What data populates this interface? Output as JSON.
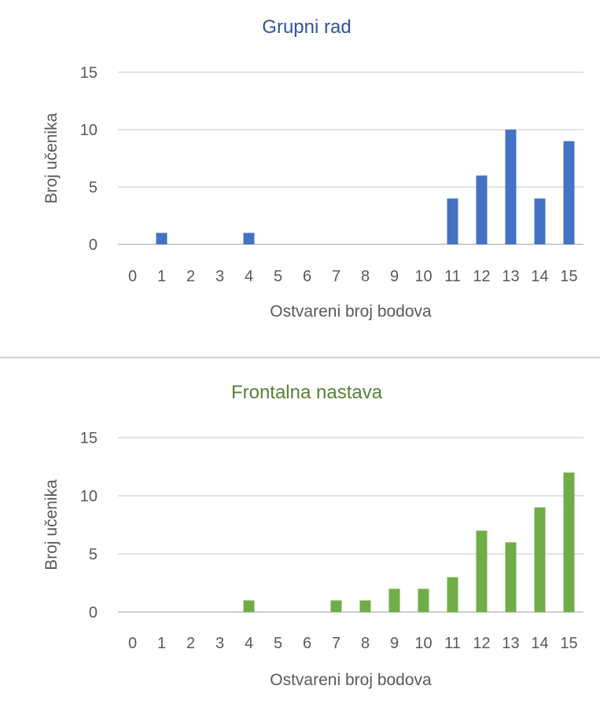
{
  "chart_data": [
    {
      "type": "bar",
      "title": "Grupni rad",
      "xlabel": "Ostvareni broj bodova",
      "ylabel": "Broj učenika",
      "categories": [
        "0",
        "1",
        "2",
        "3",
        "4",
        "5",
        "6",
        "7",
        "8",
        "9",
        "10",
        "11",
        "12",
        "13",
        "14",
        "15"
      ],
      "values": [
        0,
        1,
        0,
        0,
        1,
        0,
        0,
        0,
        0,
        0,
        0,
        4,
        6,
        10,
        4,
        9
      ],
      "y_ticks": [
        "0",
        "5",
        "10",
        "15"
      ],
      "ylim": [
        0,
        15
      ],
      "grid": true,
      "legend": "none",
      "color": "#4472c4",
      "title_color": "#2f5597"
    },
    {
      "type": "bar",
      "title": "Frontalna nastava",
      "xlabel": "Ostvareni broj bodova",
      "ylabel": "Broj učenika",
      "categories": [
        "0",
        "1",
        "2",
        "3",
        "4",
        "5",
        "6",
        "7",
        "8",
        "9",
        "10",
        "11",
        "12",
        "13",
        "14",
        "15"
      ],
      "values": [
        0,
        0,
        0,
        0,
        1,
        0,
        0,
        1,
        1,
        2,
        2,
        3,
        7,
        6,
        9,
        12
      ],
      "y_ticks": [
        "0",
        "5",
        "10",
        "15"
      ],
      "ylim": [
        0,
        15
      ],
      "grid": true,
      "legend": "none",
      "color": "#70ad47",
      "title_color": "#548235"
    }
  ]
}
